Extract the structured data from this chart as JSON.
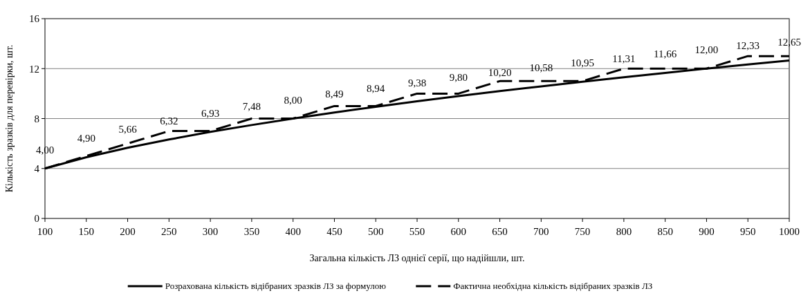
{
  "chart_data": {
    "type": "line",
    "xlabel": "Загальна кількість ЛЗ однієї серії, що надійшли, шт.",
    "ylabel": "Кількість зразків для перевірки, шт.",
    "x": [
      100,
      150,
      200,
      250,
      300,
      350,
      400,
      450,
      500,
      550,
      600,
      650,
      700,
      750,
      800,
      850,
      900,
      950,
      1000
    ],
    "xlim": [
      100,
      1000
    ],
    "xticks": [
      100,
      150,
      200,
      250,
      300,
      350,
      400,
      450,
      500,
      550,
      600,
      650,
      700,
      750,
      800,
      850,
      900,
      950,
      1000
    ],
    "ylim": [
      0,
      16
    ],
    "yticks": [
      0,
      4,
      8,
      12,
      16
    ],
    "grid": "y",
    "legend": "bottom",
    "marker": "none",
    "series": [
      {
        "name": "Розрахована кількість відібраних зразків ЛЗ за формулою",
        "color": "#000000",
        "line_style": "solid",
        "values": [
          4.0,
          4.9,
          5.66,
          6.32,
          6.93,
          7.48,
          8.0,
          8.49,
          8.94,
          9.38,
          9.8,
          10.2,
          10.58,
          10.95,
          11.31,
          11.66,
          12.0,
          12.33,
          12.65
        ],
        "value_labels": [
          "4,00",
          "4,90",
          "5,66",
          "6,32",
          "6,93",
          "7,48",
          "8,00",
          "8,49",
          "8,94",
          "9,38",
          "9,80",
          "10,20",
          "10,58",
          "10,95",
          "11,31",
          "11,66",
          "12,00",
          "12,33",
          "12,65"
        ]
      },
      {
        "name": "Фактична необхідна кількість відібраних зразків ЛЗ",
        "color": "#000000",
        "line_style": "dashed",
        "values": [
          4,
          5,
          6,
          7,
          7,
          8,
          8,
          9,
          9,
          10,
          10,
          11,
          11,
          11,
          12,
          12,
          12,
          13,
          13
        ]
      }
    ]
  }
}
